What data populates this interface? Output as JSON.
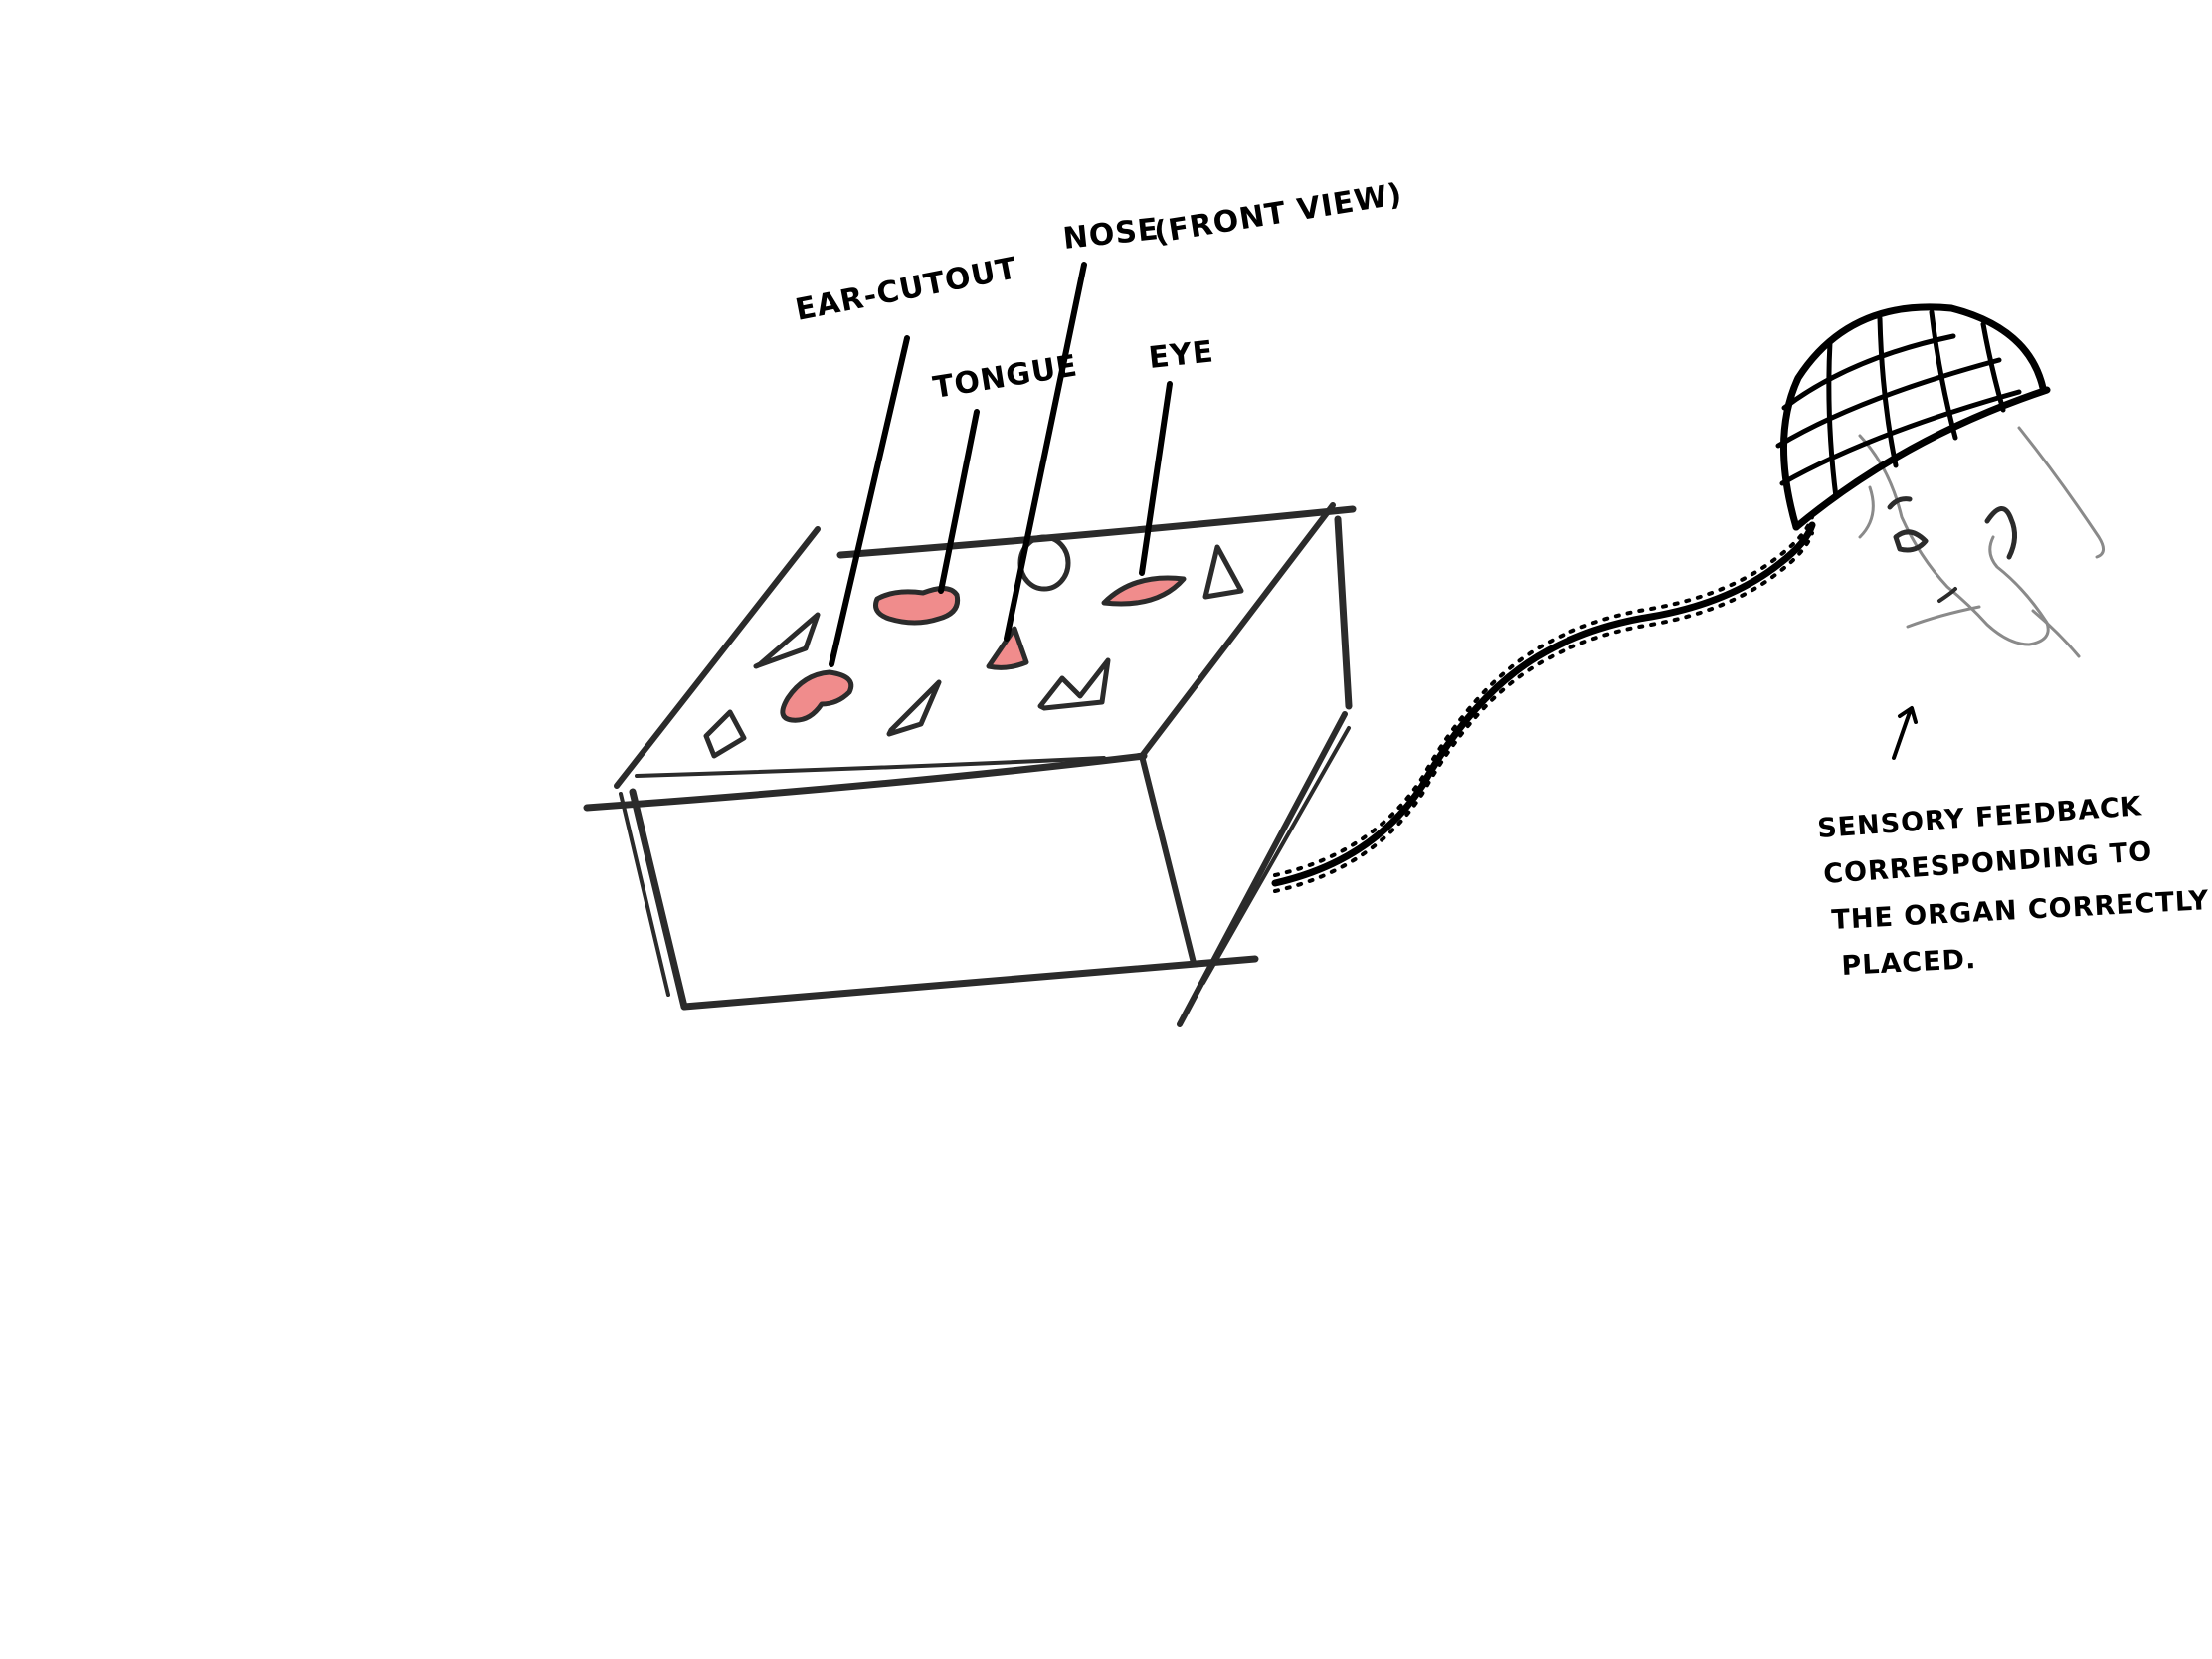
{
  "labels": {
    "ear_cutout": "EAR-CUTOUT",
    "tongue": "TONGUE",
    "nose": "NOSE",
    "nose_view": "(FRONT VIEW)",
    "eye": "EYE"
  },
  "note": {
    "line1": "SENSORY FEEDBACK",
    "line2": "CORRESPONDING TO",
    "line3": "THE ORGAN CORRECTLY",
    "line4": "PLACED."
  },
  "colors": {
    "ink": "#2b2b2b",
    "organ_fill": "#f08c8c",
    "pencil": "#8a8a8a",
    "background": "#ffffff"
  }
}
